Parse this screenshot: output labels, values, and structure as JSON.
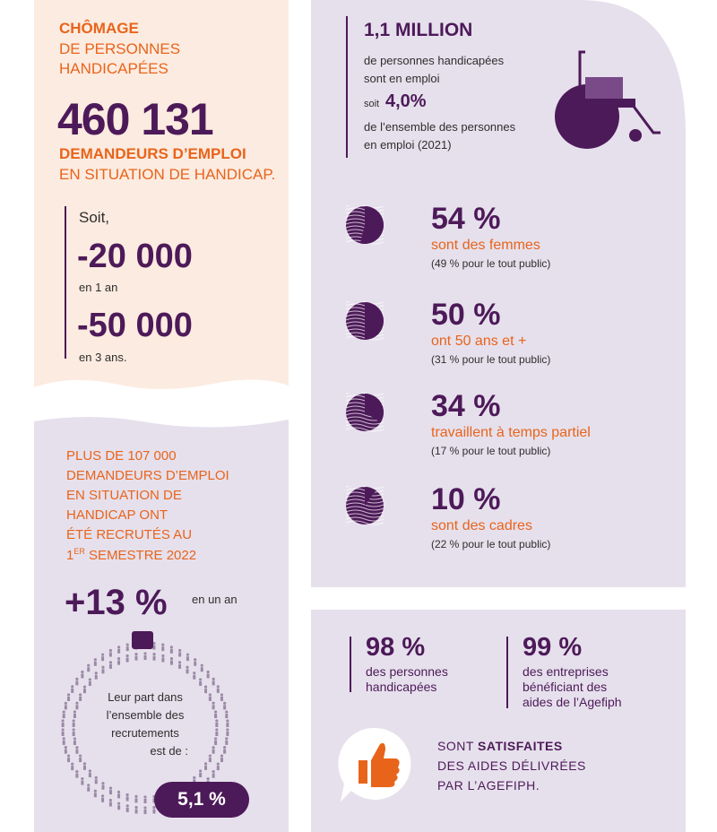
{
  "colors": {
    "orange": "#e8641b",
    "purple": "#4d1a59",
    "peach": "#fcebe0",
    "lavender": "#e6e0ec",
    "text_dark": "#2e2e2e"
  },
  "unemployment": {
    "title": "CHÔMAGE",
    "subtitle_line1": "DE PERSONNES",
    "subtitle_line2": "HANDICAPÉES",
    "big_number": "460 131",
    "desc_bold": "DEMANDEURS D’EMPLOI",
    "desc_line2": "EN SITUATION DE HANDICAP.",
    "soit": "Soit,",
    "change1_value": "-20 000",
    "change1_period": "en 1 an",
    "change2_value": "-50 000",
    "change2_period": "en 3 ans."
  },
  "employment": {
    "headline": "1,1 MILLION",
    "line1": "de personnes handicapées",
    "line2": "sont en emploi",
    "soit_word": "soit",
    "share": "4,0%",
    "line3": "de l’ensemble des personnes",
    "line4": "en emploi (2021)",
    "icon": "wheelchair-icon"
  },
  "stats": [
    {
      "pct": "54 %",
      "label": "sont des femmes",
      "note": "(49 % pour le tout public)",
      "fraction": 0.54
    },
    {
      "pct": "50 %",
      "label": "ont 50 ans et +",
      "note": "(31 % pour le tout public)",
      "fraction": 0.5
    },
    {
      "pct": "34 %",
      "label": "travaillent à temps partiel",
      "note": "(17 % pour le tout public)",
      "fraction": 0.34
    },
    {
      "pct": "10 %",
      "label": "sont des cadres",
      "note": "(22 % pour le tout public)",
      "fraction": 0.1
    }
  ],
  "recruitment": {
    "line1": "PLUS DE 107 000",
    "line2": "DEMANDEURS D’EMPLOI",
    "line3": "EN SITUATION DE",
    "line4": "HANDICAP ONT",
    "line5": "ÉTÉ RECRUTÉS AU",
    "line6_num": "1",
    "line6_sup": "ER",
    "line6_rest": " SEMESTRE 2022",
    "growth": "+13 %",
    "growth_period": "en un an",
    "ring_line1": "Leur part dans",
    "ring_line2": "l’ensemble des",
    "ring_line3": "recrutements",
    "ring_line4": "est de :",
    "share": "5,1 %",
    "share_fraction": 0.051
  },
  "satisfaction": {
    "pct1": "98 %",
    "label1_line1": "des personnes",
    "label1_line2": "handicapées",
    "pct2": "99 %",
    "label2_line1": "des entreprises",
    "label2_line2": "bénéficiant des",
    "label2_line3": "aides de l’Agefiph",
    "sont": "SONT ",
    "satisfaites": "SATISFAITES",
    "line2": "DES AIDES DÉLIVRÉES",
    "line3": "PAR L’AGEFIPH.",
    "icon": "thumbs-up-icon"
  }
}
